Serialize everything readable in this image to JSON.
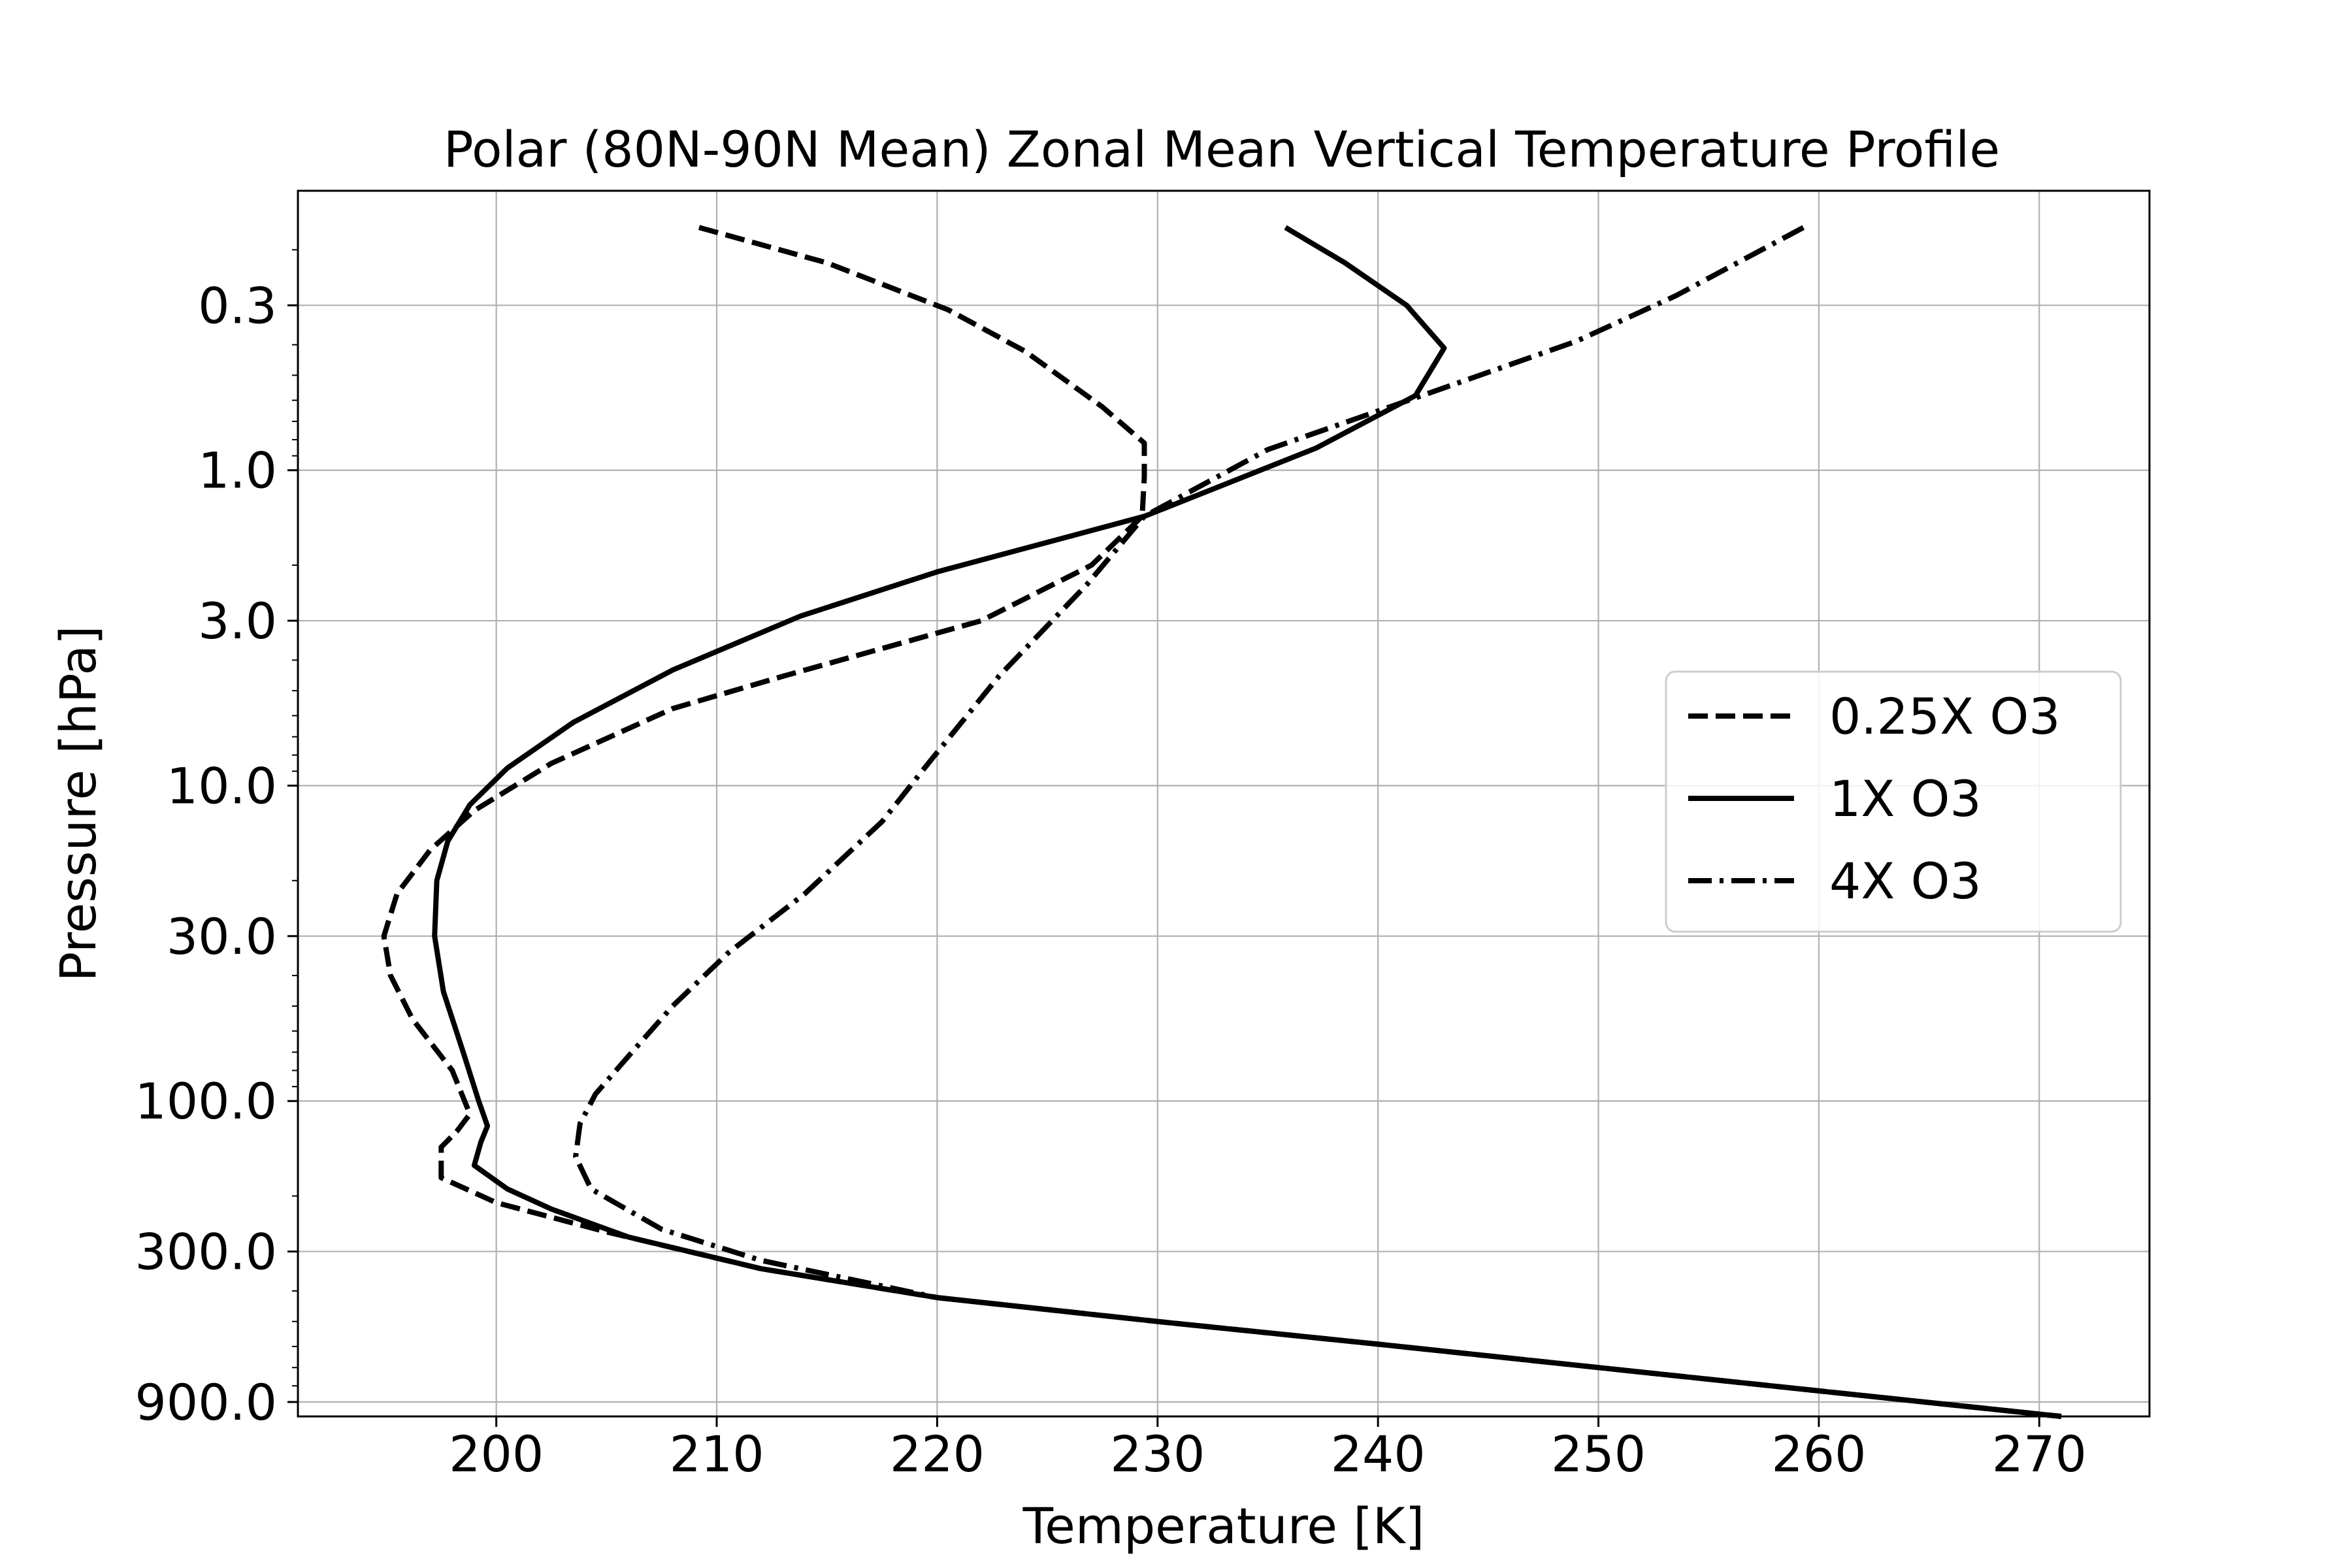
{
  "chart_data": {
    "type": "line",
    "title": "Polar (80N-90N Mean) Zonal Mean Vertical Temperature Profile",
    "xlabel": "Temperature [K]",
    "ylabel": "Pressure [hPa]",
    "xlim": [
      191,
      275
    ],
    "ylim": [
      1000,
      0.13
    ],
    "y_scale": "log",
    "y_inverted": true,
    "grid": true,
    "legend": "center-right",
    "x_ticks": [
      200,
      210,
      220,
      230,
      240,
      250,
      260,
      270
    ],
    "x_tick_labels": [
      "200",
      "210",
      "220",
      "230",
      "240",
      "250",
      "260",
      "270"
    ],
    "y_ticks": [
      0.3,
      1.0,
      3.0,
      10.0,
      30.0,
      100.0,
      300.0,
      900.0
    ],
    "y_tick_labels": [
      "0.3",
      "1.0",
      "3.0",
      "10.0",
      "30.0",
      "100.0",
      "300.0",
      "900.0"
    ],
    "series": [
      {
        "name": "0.25X O3",
        "style": "dashed",
        "points": [
          [
            209.2,
            0.17
          ],
          [
            215.0,
            0.22
          ],
          [
            220.5,
            0.31
          ],
          [
            224.0,
            0.42
          ],
          [
            227.5,
            0.63
          ],
          [
            229.4,
            0.82
          ],
          [
            229.4,
            1.05
          ],
          [
            229.3,
            1.4
          ],
          [
            227.0,
            2.0
          ],
          [
            222.0,
            3.0
          ],
          [
            213.0,
            4.5
          ],
          [
            208.0,
            5.7
          ],
          [
            202.5,
            8.5
          ],
          [
            199.0,
            12.0
          ],
          [
            197.0,
            16.0
          ],
          [
            195.5,
            22.0
          ],
          [
            194.9,
            30.0
          ],
          [
            195.2,
            40.0
          ],
          [
            196.2,
            55.0
          ],
          [
            198.0,
            80.0
          ],
          [
            198.8,
            110.0
          ],
          [
            198.2,
            125.0
          ],
          [
            197.5,
            140.0
          ],
          [
            197.5,
            175.0
          ],
          [
            200.0,
            210.0
          ],
          [
            205.0,
            260.0
          ],
          [
            212.0,
            340.0
          ],
          [
            220.0,
            420.0
          ],
          [
            230.0,
            500.0
          ],
          [
            240.0,
            590.0
          ],
          [
            250.0,
            700.0
          ],
          [
            260.0,
            830.0
          ],
          [
            271.0,
            1000.0
          ]
        ]
      },
      {
        "name": "1X O3",
        "style": "solid",
        "points": [
          [
            235.8,
            0.17
          ],
          [
            238.5,
            0.22
          ],
          [
            241.3,
            0.3
          ],
          [
            243.0,
            0.41
          ],
          [
            241.7,
            0.58
          ],
          [
            237.2,
            0.85
          ],
          [
            229.4,
            1.4
          ],
          [
            220.0,
            2.1
          ],
          [
            213.8,
            2.9
          ],
          [
            208.0,
            4.3
          ],
          [
            203.5,
            6.3
          ],
          [
            200.5,
            8.8
          ],
          [
            198.8,
            11.5
          ],
          [
            197.8,
            15.0
          ],
          [
            197.3,
            20.0
          ],
          [
            197.2,
            30.0
          ],
          [
            197.6,
            45.0
          ],
          [
            198.5,
            70.0
          ],
          [
            199.2,
            100.0
          ],
          [
            199.6,
            120.0
          ],
          [
            199.3,
            135.0
          ],
          [
            199.0,
            160.0
          ],
          [
            200.5,
            190.0
          ],
          [
            202.5,
            220.0
          ],
          [
            206.0,
            270.0
          ],
          [
            212.0,
            340.0
          ],
          [
            220.0,
            420.0
          ],
          [
            230.0,
            500.0
          ],
          [
            240.0,
            590.0
          ],
          [
            250.0,
            700.0
          ],
          [
            260.0,
            830.0
          ],
          [
            271.0,
            1000.0
          ]
        ]
      },
      {
        "name": "4X O3",
        "style": "dashdot",
        "points": [
          [
            259.3,
            0.17
          ],
          [
            253.5,
            0.28
          ],
          [
            249.0,
            0.39
          ],
          [
            242.0,
            0.58
          ],
          [
            235.0,
            0.86
          ],
          [
            229.4,
            1.4
          ],
          [
            226.8,
            2.3
          ],
          [
            222.8,
            4.5
          ],
          [
            219.6,
            8.5
          ],
          [
            217.5,
            13.0
          ],
          [
            214.0,
            22.0
          ],
          [
            210.5,
            34.0
          ],
          [
            208.0,
            50.0
          ],
          [
            206.0,
            72.0
          ],
          [
            204.5,
            95.0
          ],
          [
            203.8,
            118.0
          ],
          [
            203.6,
            150.0
          ],
          [
            204.3,
            190.0
          ],
          [
            207.5,
            255.0
          ],
          [
            212.0,
            320.0
          ],
          [
            220.0,
            420.0
          ],
          [
            230.0,
            500.0
          ],
          [
            240.0,
            590.0
          ],
          [
            250.0,
            700.0
          ],
          [
            260.0,
            830.0
          ],
          [
            271.0,
            1000.0
          ]
        ]
      }
    ]
  }
}
